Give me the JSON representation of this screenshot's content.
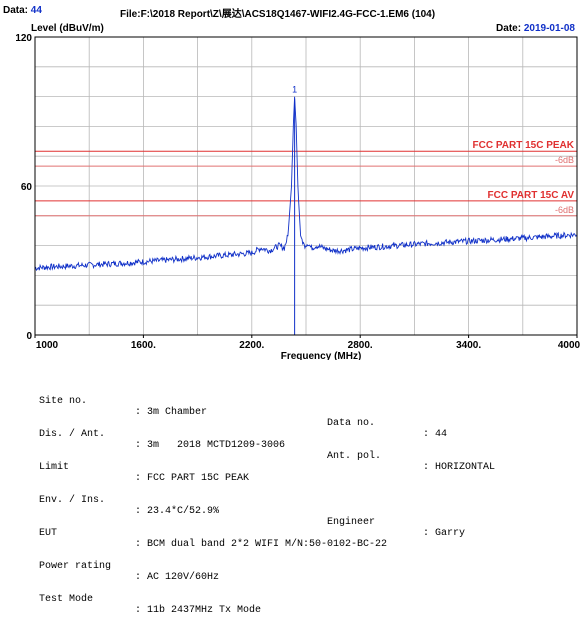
{
  "header": {
    "data_label": "Data:",
    "data_value": "44",
    "file_label": "File:",
    "file_value": "F:\\2018 Report\\Z\\展达\\ACS18Q1467-WIFI2.4G-FCC-1.EM6  (104)",
    "level_label": "Level (dBuV/m)",
    "date_label": "Date:",
    "date_value": "2019-01-08"
  },
  "chart_data": {
    "type": "line",
    "xlabel": "Frequency (MHz)",
    "ylabel": "Level (dBuV/m)",
    "xlim": [
      1000,
      4000
    ],
    "ylim": [
      0,
      120
    ],
    "x_ticks": [
      1000,
      1600,
      2200,
      2800,
      3400,
      4000
    ],
    "x_tick_labels": [
      "1000",
      "1600.",
      "2200.",
      "2800.",
      "3400.",
      "4000"
    ],
    "y_ticks": [
      0,
      60,
      120
    ],
    "y_tick_labels": [
      "0",
      "60",
      "120"
    ],
    "grid": true,
    "limit_lines": [
      {
        "name": "FCC PART 15C PEAK",
        "value": 74,
        "color": "#e03030"
      },
      {
        "name": "-6dB",
        "value": 68,
        "color": "#e07070"
      },
      {
        "name": "FCC PART 15C AV",
        "value": 54,
        "color": "#e03030"
      },
      {
        "name": "-6dB",
        "value": 48,
        "color": "#e07070"
      }
    ],
    "marker": {
      "label": "1",
      "x": 2437,
      "y": 96
    },
    "marker_line_x": 2437,
    "series": [
      {
        "color": "#1030c8",
        "points": [
          [
            1000,
            27
          ],
          [
            1100,
            27.5
          ],
          [
            1200,
            27.8
          ],
          [
            1300,
            28.2
          ],
          [
            1400,
            28.6
          ],
          [
            1500,
            29
          ],
          [
            1600,
            29.5
          ],
          [
            1700,
            30
          ],
          [
            1800,
            30.6
          ],
          [
            1900,
            31.2
          ],
          [
            2000,
            31.8
          ],
          [
            2100,
            32.4
          ],
          [
            2200,
            33
          ],
          [
            2250,
            35
          ],
          [
            2300,
            34
          ],
          [
            2350,
            36
          ],
          [
            2380,
            35
          ],
          [
            2400,
            40
          ],
          [
            2420,
            60
          ],
          [
            2430,
            85
          ],
          [
            2437,
            96
          ],
          [
            2445,
            85
          ],
          [
            2455,
            60
          ],
          [
            2470,
            40
          ],
          [
            2490,
            36
          ],
          [
            2510,
            37
          ],
          [
            2530,
            35
          ],
          [
            2560,
            36
          ],
          [
            2600,
            35
          ],
          [
            2650,
            34
          ],
          [
            2700,
            34
          ],
          [
            2800,
            35
          ],
          [
            2900,
            35.5
          ],
          [
            3000,
            36
          ],
          [
            3100,
            36.5
          ],
          [
            3200,
            37
          ],
          [
            3300,
            37.4
          ],
          [
            3400,
            37.8
          ],
          [
            3500,
            38.2
          ],
          [
            3600,
            38.6
          ],
          [
            3700,
            39
          ],
          [
            3800,
            39.5
          ],
          [
            3900,
            40
          ],
          [
            4000,
            40.5
          ]
        ]
      }
    ]
  },
  "info": {
    "site_label": "Site no.",
    "site_value": ": 3m Chamber",
    "data_no_label": "Data no.",
    "data_no_value": ": 44",
    "dis_label": "Dis. / Ant.",
    "dis_value": ": 3m   2018 MCTD1209-3006",
    "ant_pol_label": "Ant. pol.",
    "ant_pol_value": ": HORIZONTAL",
    "limit_label": "Limit",
    "limit_value": ": FCC PART 15C PEAK",
    "env_label": "Env. / Ins.",
    "env_value": ": 23.4*C/52.9%",
    "engineer_label": "Engineer",
    "engineer_value": ": Garry",
    "eut_label": "EUT",
    "eut_value": ": BCM dual band 2*2 WIFI M/N:50-0102-BC-22",
    "power_label": "Power rating",
    "power_value": ": AC 120V/60Hz",
    "mode_label": "Test Mode",
    "mode_value": ": 11b 2437MHz Tx Mode"
  }
}
